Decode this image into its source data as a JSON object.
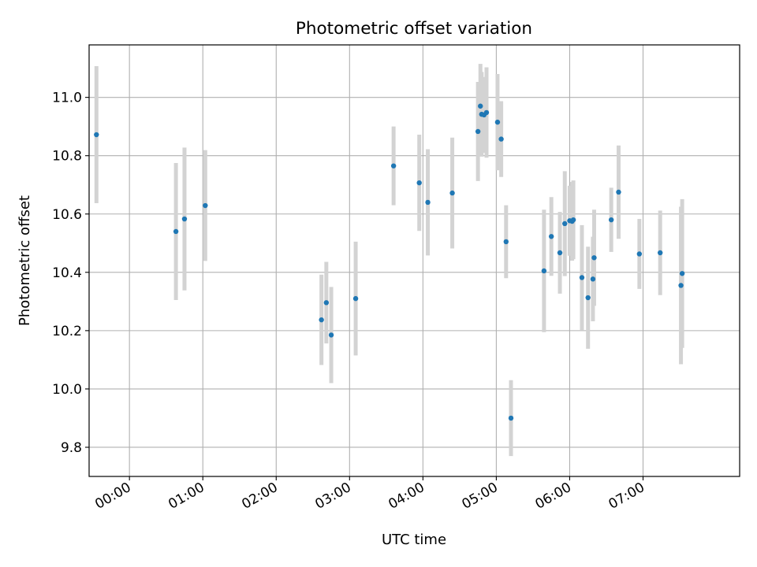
{
  "chart_data": {
    "type": "scatter",
    "title": "Photometric offset variation",
    "xlabel": "UTC time",
    "ylabel": "Photometric offset",
    "x_unit": "hours UTC",
    "xlim": [
      "23:27",
      "08:19"
    ],
    "ylim": [
      9.7,
      11.18
    ],
    "x_ticks": [
      "00:00",
      "01:00",
      "02:00",
      "03:00",
      "04:00",
      "05:00",
      "06:00",
      "07:00"
    ],
    "y_ticks": [
      9.8,
      10.0,
      10.2,
      10.4,
      10.6,
      10.8,
      11.0
    ],
    "grid": true,
    "legend": "none",
    "series": [
      {
        "points": [
          {
            "t": "23:33",
            "y": 10.872,
            "err": 0.235
          },
          {
            "t": "00:38",
            "y": 10.54,
            "err": 0.235
          },
          {
            "t": "00:45",
            "y": 10.583,
            "err": 0.245
          },
          {
            "t": "01:02",
            "y": 10.629,
            "err": 0.19
          },
          {
            "t": "02:37",
            "y": 10.237,
            "err": 0.155
          },
          {
            "t": "02:41",
            "y": 10.296,
            "err": 0.14
          },
          {
            "t": "02:45",
            "y": 10.185,
            "err": 0.165
          },
          {
            "t": "03:05",
            "y": 10.31,
            "err": 0.195
          },
          {
            "t": "03:36",
            "y": 10.765,
            "err": 0.135
          },
          {
            "t": "03:57",
            "y": 10.707,
            "err": 0.165
          },
          {
            "t": "04:04",
            "y": 10.64,
            "err": 0.182
          },
          {
            "t": "04:24",
            "y": 10.672,
            "err": 0.19
          },
          {
            "t": "04:45",
            "y": 10.883,
            "err": 0.17
          },
          {
            "t": "04:47",
            "y": 10.97,
            "err": 0.145
          },
          {
            "t": "04:48",
            "y": 10.942,
            "err": 0.145
          },
          {
            "t": "04:50",
            "y": 10.94,
            "err": 0.13
          },
          {
            "t": "04:52",
            "y": 10.948,
            "err": 0.155
          },
          {
            "t": "05:01",
            "y": 10.915,
            "err": 0.165
          },
          {
            "t": "05:04",
            "y": 10.857,
            "err": 0.13
          },
          {
            "t": "05:08",
            "y": 10.505,
            "err": 0.125
          },
          {
            "t": "05:12",
            "y": 9.9,
            "err": 0.13
          },
          {
            "t": "05:39",
            "y": 10.405,
            "err": 0.21
          },
          {
            "t": "05:45",
            "y": 10.523,
            "err": 0.135
          },
          {
            "t": "05:52",
            "y": 10.467,
            "err": 0.14
          },
          {
            "t": "05:56",
            "y": 10.567,
            "err": 0.18
          },
          {
            "t": "06:00",
            "y": 10.577,
            "err": 0.12
          },
          {
            "t": "06:02",
            "y": 10.575,
            "err": 0.135
          },
          {
            "t": "06:03",
            "y": 10.58,
            "err": 0.135
          },
          {
            "t": "06:10",
            "y": 10.382,
            "err": 0.18
          },
          {
            "t": "06:15",
            "y": 10.313,
            "err": 0.175
          },
          {
            "t": "06:19",
            "y": 10.377,
            "err": 0.145
          },
          {
            "t": "06:20",
            "y": 10.45,
            "err": 0.165
          },
          {
            "t": "06:34",
            "y": 10.58,
            "err": 0.11
          },
          {
            "t": "06:40",
            "y": 10.675,
            "err": 0.16
          },
          {
            "t": "06:57",
            "y": 10.463,
            "err": 0.12
          },
          {
            "t": "07:14",
            "y": 10.467,
            "err": 0.145
          },
          {
            "t": "07:31",
            "y": 10.355,
            "err": 0.27
          },
          {
            "t": "07:32",
            "y": 10.396,
            "err": 0.255
          }
        ]
      }
    ]
  },
  "colors": {
    "marker": "#1f77b4",
    "errorbar": "#d3d3d3",
    "grid": "#b0b0b0",
    "axes": "#000000"
  }
}
